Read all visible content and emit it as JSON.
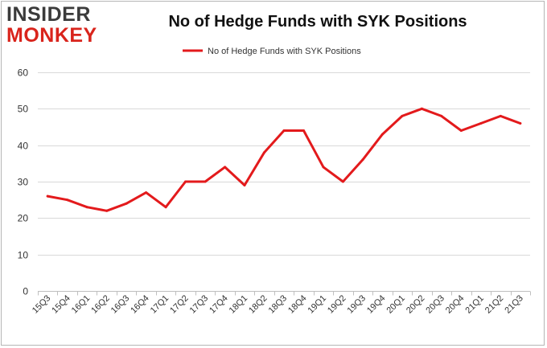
{
  "logo": {
    "line1": "INSIDER",
    "line2": "MONKEY"
  },
  "chart_data": {
    "type": "line",
    "title": "No of Hedge Funds with SYK Positions",
    "categories": [
      "15Q3",
      "15Q4",
      "16Q1",
      "16Q2",
      "16Q3",
      "16Q4",
      "17Q1",
      "17Q2",
      "17Q3",
      "17Q4",
      "18Q1",
      "18Q2",
      "18Q3",
      "18Q4",
      "19Q1",
      "19Q2",
      "19Q3",
      "19Q4",
      "20Q1",
      "20Q2",
      "20Q3",
      "20Q4",
      "21Q1",
      "21Q2",
      "21Q3"
    ],
    "series": [
      {
        "name": "No of Hedge Funds with SYK Positions",
        "color": "#e31a1c",
        "values": [
          26,
          25,
          23,
          22,
          24,
          27,
          23,
          30,
          30,
          34,
          29,
          38,
          44,
          44,
          34,
          30,
          36,
          43,
          48,
          50,
          48,
          44,
          46,
          48,
          46
        ]
      }
    ],
    "ylim": [
      0,
      60
    ],
    "yticks": [
      0,
      10,
      20,
      30,
      40,
      50,
      60
    ],
    "xlabel": "",
    "ylabel": "",
    "grid": true,
    "legend_position": "top-center"
  }
}
